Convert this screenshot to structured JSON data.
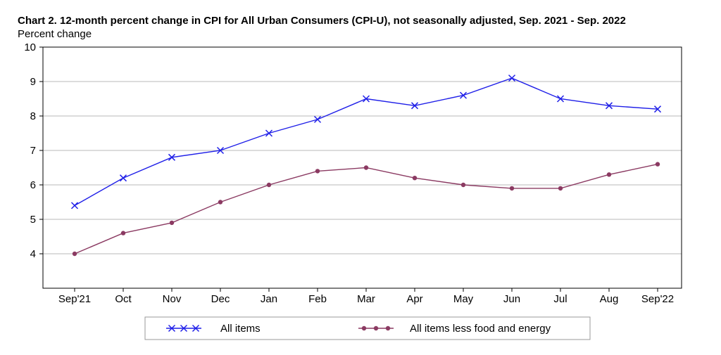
{
  "chart_data": {
    "type": "line",
    "title": "Chart 2. 12-month percent change in CPI for All Urban Consumers (CPI-U), not seasonally adjusted, Sep. 2021 - Sep. 2022",
    "ylabel": "Percent change",
    "xlabel": "",
    "categories": [
      "Sep'21",
      "Oct",
      "Nov",
      "Dec",
      "Jan",
      "Feb",
      "Mar",
      "Apr",
      "May",
      "Jun",
      "Jul",
      "Aug",
      "Sep'22"
    ],
    "ylim": [
      3,
      10
    ],
    "yticks": [
      4,
      5,
      6,
      7,
      8,
      9,
      10
    ],
    "grid": true,
    "legend_position": "bottom",
    "series": [
      {
        "name": "All items",
        "color": "#1f1fe8",
        "marker": "x",
        "values": [
          5.4,
          6.2,
          6.8,
          7.0,
          7.5,
          7.9,
          8.5,
          8.3,
          8.6,
          9.1,
          8.5,
          8.3,
          8.2
        ]
      },
      {
        "name": "All items less food and energy",
        "color": "#8b3a62",
        "marker": "dot",
        "values": [
          4.0,
          4.6,
          4.9,
          5.5,
          6.0,
          6.4,
          6.5,
          6.2,
          6.0,
          5.9,
          5.9,
          6.3,
          6.6
        ]
      }
    ]
  }
}
